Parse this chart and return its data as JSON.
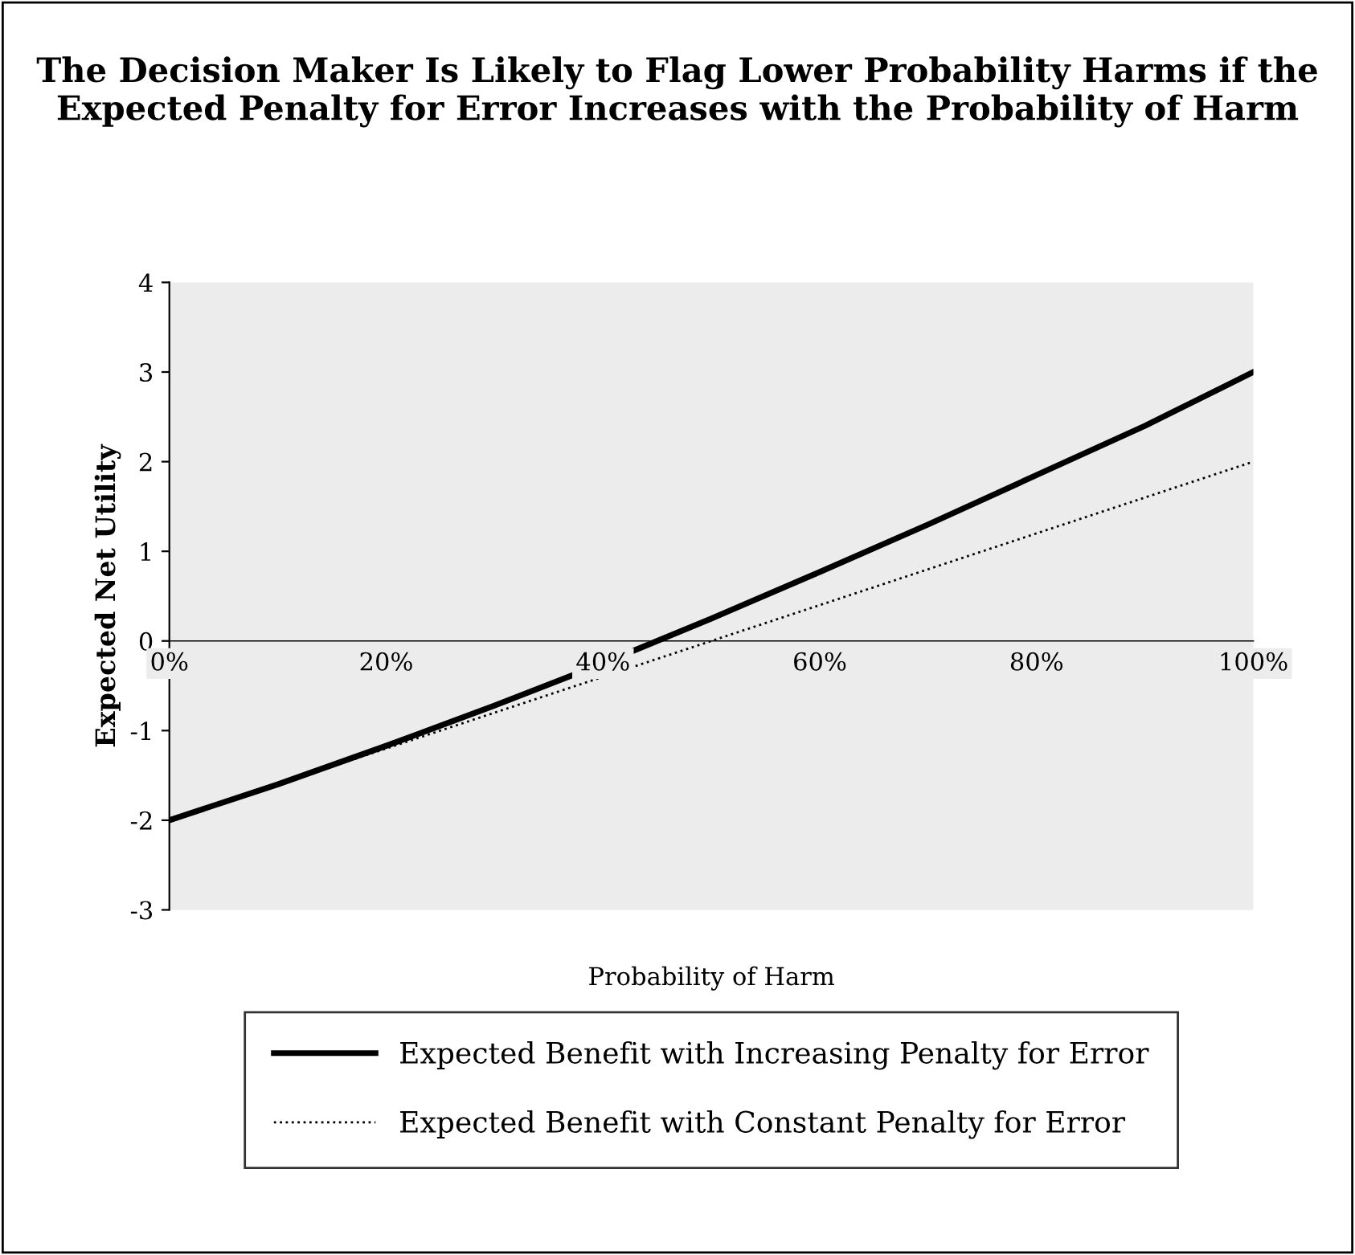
{
  "chart_data": {
    "type": "line",
    "title": "The Decision Maker Is Likely to Flag Lower Probability Harms if the Expected Penalty for Error Increases with the Probability of Harm",
    "xlabel": "Probability of Harm",
    "ylabel": "Expected Net Utility",
    "x": [
      0,
      10,
      20,
      30,
      40,
      50,
      60,
      70,
      80,
      90,
      100
    ],
    "series": [
      {
        "name": "Expected Benefit with Increasing Penalty for Error",
        "color": "#000000",
        "line_style": "solid",
        "values": [
          -2,
          -1.6,
          -1.17,
          -0.72,
          -0.25,
          0.25,
          0.77,
          1.3,
          1.85,
          2.4,
          3
        ]
      },
      {
        "name": "Expected Benefit with Constant Penalty for Error",
        "color": "#000000",
        "line_style": "dotted",
        "values": [
          -2,
          -1.6,
          -1.2,
          -0.8,
          -0.4,
          0,
          0.4,
          0.8,
          1.2,
          1.6,
          2
        ]
      }
    ],
    "xlim": [
      0,
      100
    ],
    "xticks": [
      {
        "value": 0,
        "label": "0%"
      },
      {
        "value": 20,
        "label": "20%"
      },
      {
        "value": 40,
        "label": "40%"
      },
      {
        "value": 60,
        "label": "60%"
      },
      {
        "value": 80,
        "label": "80%"
      },
      {
        "value": 100,
        "label": "100%"
      }
    ],
    "ylim": [
      -3,
      4
    ],
    "yticks": [
      -3,
      -2,
      -1,
      0,
      1,
      2,
      3,
      4
    ],
    "grid": false,
    "legend": "bottom",
    "marker": "none"
  }
}
